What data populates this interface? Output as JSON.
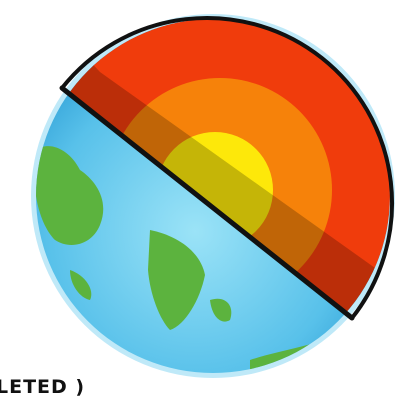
{
  "caption": "LETED )"
}
